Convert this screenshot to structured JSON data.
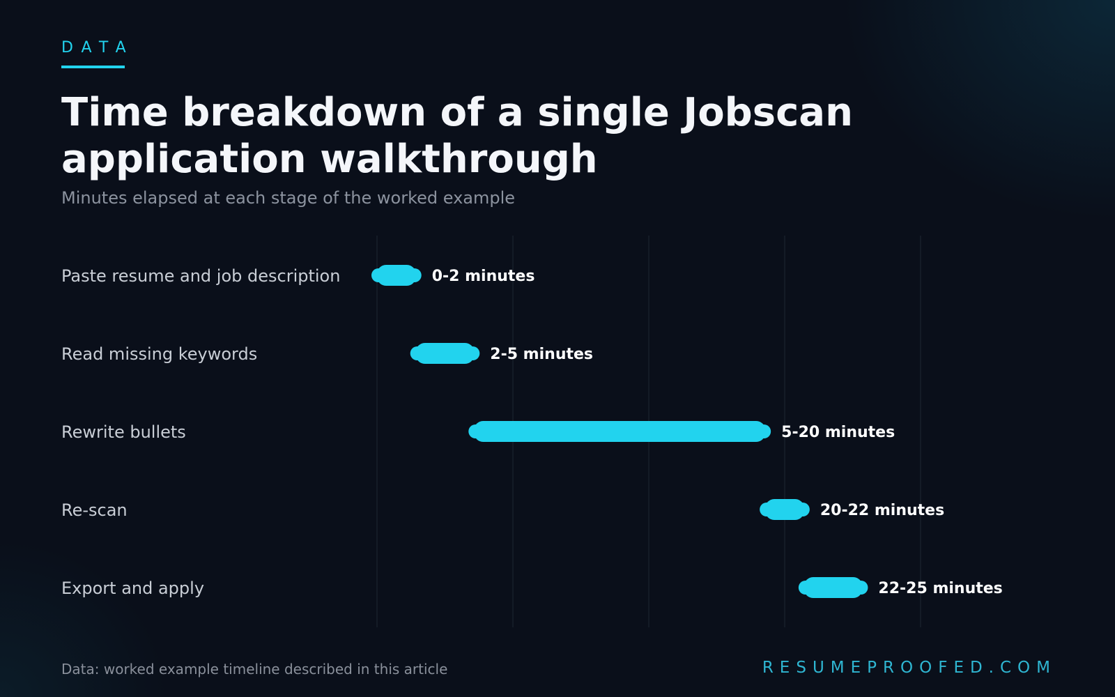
{
  "header": {
    "eyebrow": "DATA",
    "title": "Time breakdown of a single Jobscan application walkthrough",
    "subtitle": "Minutes elapsed at each stage of the worked example"
  },
  "footer": {
    "source": "Data: worked example timeline described in this article",
    "brand": "RESUMEPROOFED.COM"
  },
  "colors": {
    "accent": "#22d3ee",
    "background": "#0a0f1a",
    "gridline": "#1f2733"
  },
  "chart_data": {
    "type": "bar",
    "orientation": "horizontal-range",
    "title": "Time breakdown of a single Jobscan application walkthrough",
    "subtitle": "Minutes elapsed at each stage of the worked example",
    "categories": [
      "Paste resume and job description",
      "Read missing keywords",
      "Rewrite bullets",
      "Re-scan",
      "Export and apply"
    ],
    "series": [
      {
        "ranges": [
          [
            0,
            2
          ],
          [
            2,
            5
          ],
          [
            5,
            20
          ],
          [
            20,
            22
          ],
          [
            22,
            25
          ]
        ],
        "labels": [
          "0-2 minutes",
          "2-5 minutes",
          "5-20 minutes",
          "20-22 minutes",
          "22-25 minutes"
        ]
      }
    ],
    "xlim": [
      0,
      35
    ],
    "gridlines_x": [
      0,
      7,
      14,
      21,
      28
    ],
    "grid": true,
    "xlabel": "",
    "ylabel": "",
    "legend": "none"
  }
}
